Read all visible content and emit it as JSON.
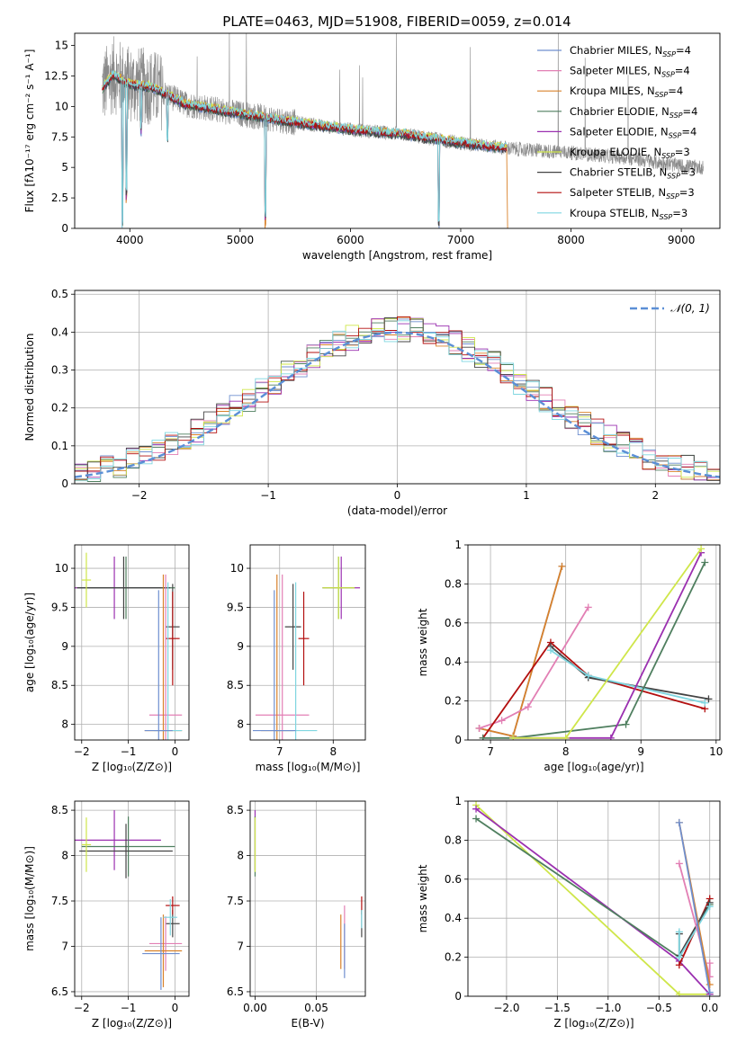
{
  "figure_title": "PLATE=0463, MJD=51908, FIBERID=0059, z=0.014",
  "legend_series": [
    {
      "name": "Chabrier MILES, N",
      "sub": "SSP",
      "tail": "=4",
      "color": "#6f8fcf"
    },
    {
      "name": "Salpeter MILES, N",
      "sub": "SSP",
      "tail": "=4",
      "color": "#e27fb4"
    },
    {
      "name": "Kroupa MILES, N",
      "sub": "SSP",
      "tail": "=4",
      "color": "#d9822b"
    },
    {
      "name": "Chabrier ELODIE, N",
      "sub": "SSP",
      "tail": "=4",
      "color": "#4f7f5f"
    },
    {
      "name": "Salpeter ELODIE, N",
      "sub": "SSP",
      "tail": "=4",
      "color": "#9b30b0"
    },
    {
      "name": "Kroupa ELODIE, N",
      "sub": "SSP",
      "tail": "=3",
      "color": "#cfe64a"
    },
    {
      "name": "Chabrier STELIB, N",
      "sub": "SSP",
      "tail": "=3",
      "color": "#444444"
    },
    {
      "name": "Salpeter STELIB, N",
      "sub": "SSP",
      "tail": "=3",
      "color": "#b30f0f"
    },
    {
      "name": "Kroupa STELIB, N",
      "sub": "SSP",
      "tail": "=3",
      "color": "#7fd6e0"
    }
  ],
  "chart_data": [
    {
      "id": "spectrum",
      "type": "line",
      "title": "PLATE=0463, MJD=51908, FIBERID=0059, z=0.014",
      "xlabel": "wavelength [Angstrom, rest frame]",
      "ylabel": "Flux [fλ10⁻¹⁷ erg cm⁻² s⁻¹ A⁻¹]",
      "xlim": [
        3500,
        9350
      ],
      "ylim": [
        0,
        16
      ],
      "xticks": [
        4000,
        5000,
        6000,
        7000,
        8000,
        9000
      ],
      "yticks": [
        0.0,
        2.5,
        5.0,
        7.5,
        10.0,
        12.5,
        15.0
      ],
      "continuum": [
        [
          3750,
          11.5
        ],
        [
          3850,
          12.6
        ],
        [
          4000,
          11.8
        ],
        [
          4200,
          11.6
        ],
        [
          4500,
          10.2
        ],
        [
          5000,
          9.4
        ],
        [
          5500,
          8.7
        ],
        [
          6000,
          8.1
        ],
        [
          6500,
          7.7
        ],
        [
          7000,
          7.0
        ],
        [
          7500,
          6.5
        ],
        [
          8000,
          6.2
        ],
        [
          8500,
          5.8
        ],
        [
          9000,
          5.1
        ],
        [
          9200,
          5.0
        ]
      ],
      "data_range": [
        3750,
        9200
      ],
      "model_range": [
        3750,
        7420
      ],
      "grid": false
    },
    {
      "id": "residuals",
      "type": "step",
      "xlabel": "(data-model)/error",
      "ylabel": "Normed distribution",
      "xlim": [
        -2.5,
        2.5
      ],
      "ylim": [
        0,
        0.51
      ],
      "xticks": [
        -2,
        -1,
        0,
        1,
        2
      ],
      "yticks": [
        0.0,
        0.1,
        0.2,
        0.3,
        0.4,
        0.5
      ],
      "legend": "𝒩(0, 1)",
      "bin_width": 0.1,
      "grid": true
    },
    {
      "id": "age_vs_Z",
      "type": "errorbar",
      "xlabel": "Z [log₁₀(Z/Z⊙)]",
      "ylabel": "age  [log₁₀(age/yr)]",
      "xlim": [
        -2.15,
        0.3
      ],
      "ylim": [
        7.8,
        10.3
      ],
      "xticks": [
        -2,
        -1,
        0
      ],
      "yticks": [
        8.0,
        8.5,
        9.0,
        9.5,
        10.0
      ],
      "points": [
        {
          "x": -1.3,
          "y": 9.75,
          "xerr": 1.0,
          "yerr": 0.4,
          "c": 4
        },
        {
          "x": -1.05,
          "y": 9.75,
          "xerr": 1.05,
          "yerr": 0.4,
          "c": 3
        },
        {
          "x": -1.1,
          "y": 9.75,
          "xerr": 1.0,
          "yerr": 0.4,
          "c": 6
        },
        {
          "x": -1.9,
          "y": 9.85,
          "xerr": 0.1,
          "yerr": 0.35,
          "c": 5
        },
        {
          "x": -0.05,
          "y": 9.25,
          "xerr": 0.15,
          "yerr": 0.55,
          "c": 6
        },
        {
          "x": -0.05,
          "y": 9.1,
          "xerr": 0.15,
          "yerr": 0.6,
          "c": 7
        },
        {
          "x": -0.2,
          "y": 8.12,
          "xerr": 0.35,
          "yerr": 1.8,
          "c": 1
        },
        {
          "x": -0.25,
          "y": 7.92,
          "xerr": 0.4,
          "yerr": 2.0,
          "c": 2
        },
        {
          "x": -0.15,
          "y": 7.92,
          "xerr": 0.3,
          "yerr": 1.9,
          "c": 8
        },
        {
          "x": -0.35,
          "y": 7.92,
          "xerr": 0.3,
          "yerr": 1.8,
          "c": 0
        }
      ],
      "grid": true
    },
    {
      "id": "age_vs_mass",
      "type": "errorbar",
      "xlabel": "mass [log₁₀(M/M⊙)]",
      "ylabel": "",
      "xlim": [
        6.45,
        8.6
      ],
      "ylim": [
        7.8,
        10.3
      ],
      "xticks": [
        7,
        8
      ],
      "yticks": [
        8.0,
        8.5,
        9.0,
        9.5,
        10.0
      ],
      "points": [
        {
          "x": 8.15,
          "y": 9.75,
          "xerr": 0.35,
          "yerr": 0.4,
          "c": 4
        },
        {
          "x": 8.1,
          "y": 9.75,
          "xerr": 0.3,
          "yerr": 0.4,
          "c": 3
        },
        {
          "x": 8.1,
          "y": 9.75,
          "xerr": 0.3,
          "yerr": 0.4,
          "c": 5
        },
        {
          "x": 7.25,
          "y": 9.25,
          "xerr": 0.15,
          "yerr": 0.55,
          "c": 6
        },
        {
          "x": 7.45,
          "y": 9.1,
          "xerr": 0.1,
          "yerr": 0.6,
          "c": 7
        },
        {
          "x": 7.05,
          "y": 8.12,
          "xerr": 0.5,
          "yerr": 1.8,
          "c": 1
        },
        {
          "x": 6.95,
          "y": 7.92,
          "xerr": 0.3,
          "yerr": 2.0,
          "c": 2
        },
        {
          "x": 7.3,
          "y": 7.92,
          "xerr": 0.4,
          "yerr": 1.9,
          "c": 8
        },
        {
          "x": 6.9,
          "y": 7.92,
          "xerr": 0.4,
          "yerr": 1.8,
          "c": 0
        }
      ],
      "grid": true
    },
    {
      "id": "mass_weight_vs_age",
      "type": "line",
      "xlabel": "age  [log₁₀(age/yr)]",
      "ylabel": "mass weight",
      "xlim": [
        6.7,
        10.05
      ],
      "ylim": [
        0,
        1.0
      ],
      "xticks": [
        7,
        8,
        9,
        10
      ],
      "yticks": [
        0.0,
        0.2,
        0.4,
        0.6,
        0.8,
        1.0
      ],
      "series": [
        {
          "c": 0,
          "points": [
            [
              6.85,
              0.06
            ],
            [
              7.3,
              0.02
            ],
            [
              7.95,
              0.89
            ]
          ]
        },
        {
          "c": 2,
          "points": [
            [
              6.85,
              0.06
            ],
            [
              7.3,
              0.02
            ],
            [
              7.95,
              0.89
            ]
          ]
        },
        {
          "c": 1,
          "points": [
            [
              6.85,
              0.06
            ],
            [
              7.15,
              0.1
            ],
            [
              7.5,
              0.17
            ],
            [
              8.3,
              0.68
            ]
          ]
        },
        {
          "c": 7,
          "points": [
            [
              6.9,
              0.01
            ],
            [
              7.8,
              0.5
            ],
            [
              8.3,
              0.33
            ],
            [
              9.85,
              0.16
            ]
          ]
        },
        {
          "c": 6,
          "points": [
            [
              7.8,
              0.48
            ],
            [
              8.3,
              0.32
            ],
            [
              9.9,
              0.21
            ]
          ]
        },
        {
          "c": 8,
          "points": [
            [
              7.8,
              0.46
            ],
            [
              8.3,
              0.33
            ],
            [
              9.85,
              0.19
            ]
          ]
        },
        {
          "c": 3,
          "points": [
            [
              6.9,
              0.01
            ],
            [
              7.3,
              0.01
            ],
            [
              8.8,
              0.08
            ],
            [
              9.85,
              0.91
            ]
          ]
        },
        {
          "c": 4,
          "points": [
            [
              7.3,
              0.01
            ],
            [
              8.6,
              0.01
            ],
            [
              9.8,
              0.96
            ]
          ]
        },
        {
          "c": 5,
          "points": [
            [
              7.3,
              0.01
            ],
            [
              8.0,
              0.01
            ],
            [
              9.8,
              0.98
            ]
          ]
        }
      ],
      "grid": true
    },
    {
      "id": "mass_vs_Z",
      "type": "errorbar",
      "xlabel": "Z [log₁₀(Z/Z⊙)]",
      "ylabel": "mass [log₁₀(M/M⊙)]",
      "xlim": [
        -2.15,
        0.3
      ],
      "ylim": [
        6.45,
        8.6
      ],
      "xticks": [
        -2,
        -1,
        0
      ],
      "yticks": [
        6.5,
        7.0,
        7.5,
        8.0,
        8.5
      ],
      "points": [
        {
          "x": -1.3,
          "y": 8.17,
          "xerr": 1.0,
          "yerr": 0.33,
          "c": 4
        },
        {
          "x": -1.0,
          "y": 8.1,
          "xerr": 1.0,
          "yerr": 0.33,
          "c": 3
        },
        {
          "x": -1.05,
          "y": 8.05,
          "xerr": 1.0,
          "yerr": 0.3,
          "c": 6
        },
        {
          "x": -1.9,
          "y": 8.12,
          "xerr": 0.1,
          "yerr": 0.3,
          "c": 5
        },
        {
          "x": -0.05,
          "y": 7.25,
          "xerr": 0.15,
          "yerr": 0.15,
          "c": 6
        },
        {
          "x": -0.05,
          "y": 7.45,
          "xerr": 0.15,
          "yerr": 0.1,
          "c": 7
        },
        {
          "x": -0.2,
          "y": 7.03,
          "xerr": 0.35,
          "yerr": 0.3,
          "c": 1
        },
        {
          "x": -0.25,
          "y": 6.95,
          "xerr": 0.4,
          "yerr": 0.4,
          "c": 2
        },
        {
          "x": -0.1,
          "y": 7.32,
          "xerr": 0.15,
          "yerr": 0.2,
          "c": 8
        },
        {
          "x": -0.3,
          "y": 6.92,
          "xerr": 0.4,
          "yerr": 0.4,
          "c": 0
        }
      ],
      "grid": true
    },
    {
      "id": "mass_vs_ebv",
      "type": "errorbar",
      "xlabel": "E(B-V)",
      "ylabel": "",
      "xlim": [
        -0.004,
        0.09
      ],
      "ylim": [
        6.45,
        8.6
      ],
      "xticks": [
        0.0,
        0.05
      ],
      "yticks": [
        6.5,
        7.0,
        7.5,
        8.0,
        8.5
      ],
      "xtick_labels": [
        "0.00",
        "0.05"
      ],
      "points": [
        {
          "x": 0.0,
          "y": 8.17,
          "xerr": 0,
          "yerr": 0.33,
          "c": 4
        },
        {
          "x": 0.0,
          "y": 8.1,
          "xerr": 0,
          "yerr": 0.33,
          "c": 3
        },
        {
          "x": 0.0,
          "y": 8.12,
          "xerr": 0,
          "yerr": 0.3,
          "c": 5
        },
        {
          "x": 0.07,
          "y": 7.05,
          "xerr": 0,
          "yerr": 0.3,
          "c": 2
        },
        {
          "x": 0.073,
          "y": 7.1,
          "xerr": 0,
          "yerr": 0.35,
          "c": 1
        },
        {
          "x": 0.073,
          "y": 6.95,
          "xerr": 0,
          "yerr": 0.3,
          "c": 0
        },
        {
          "x": 0.087,
          "y": 7.45,
          "xerr": 0,
          "yerr": 0.1,
          "c": 7
        },
        {
          "x": 0.087,
          "y": 7.25,
          "xerr": 0,
          "yerr": 0.15,
          "c": 6
        },
        {
          "x": 0.087,
          "y": 7.3,
          "xerr": 0,
          "yerr": 0.1,
          "c": 8
        }
      ],
      "grid": true
    },
    {
      "id": "mass_weight_vs_Z",
      "type": "line",
      "xlabel": "Z [log₁₀(Z/Z⊙)]",
      "ylabel": "mass weight",
      "xlim": [
        -2.38,
        0.1
      ],
      "ylim": [
        0,
        1.0
      ],
      "xticks": [
        -2.0,
        -1.5,
        -1.0,
        -0.5,
        0.0
      ],
      "yticks": [
        0.0,
        0.2,
        0.4,
        0.6,
        0.8,
        1.0
      ],
      "xtick_labels": [
        "−2.0",
        "−1.5",
        "−1.0",
        "−0.5",
        "0.0"
      ],
      "series": [
        {
          "c": 5,
          "points": [
            [
              -2.3,
              0.98
            ],
            [
              -0.3,
              0.01
            ],
            [
              0.0,
              0.01
            ]
          ]
        },
        {
          "c": 4,
          "points": [
            [
              -2.3,
              0.96
            ],
            [
              -0.3,
              0.18
            ],
            [
              0.0,
              0.01
            ]
          ]
        },
        {
          "c": 3,
          "points": [
            [
              -2.3,
              0.91
            ],
            [
              -0.3,
              0.2
            ],
            [
              0.0,
              0.47
            ]
          ]
        },
        {
          "c": 7,
          "points": [
            [
              -0.3,
              0.16
            ],
            [
              0.0,
              0.5
            ]
          ]
        },
        {
          "c": 6,
          "points": [
            [
              -0.3,
              0.32
            ],
            [
              -0.3,
              0.21
            ],
            [
              0.0,
              0.48
            ]
          ]
        },
        {
          "c": 8,
          "points": [
            [
              -0.3,
              0.33
            ],
            [
              -0.3,
              0.2
            ],
            [
              0.0,
              0.46
            ]
          ]
        },
        {
          "c": 1,
          "points": [
            [
              -0.3,
              0.68
            ],
            [
              0.0,
              0.1
            ],
            [
              0.0,
              0.17
            ]
          ]
        },
        {
          "c": 2,
          "points": [
            [
              -0.3,
              0.89
            ],
            [
              0.0,
              0.06
            ]
          ]
        },
        {
          "c": 0,
          "points": [
            [
              -0.3,
              0.89
            ],
            [
              0.0,
              0.02
            ]
          ]
        }
      ],
      "grid": true
    }
  ]
}
